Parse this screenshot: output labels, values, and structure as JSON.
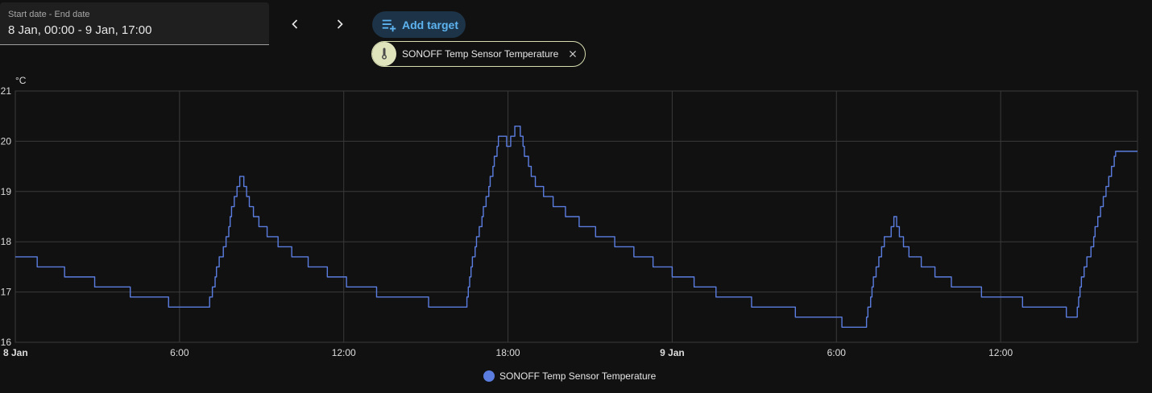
{
  "date_picker": {
    "label": "Start date - End date",
    "value": "8 Jan, 00:00 - 9 Jan, 17:00"
  },
  "nav": {
    "prev_icon": "chevron-left-icon",
    "next_icon": "chevron-right-icon"
  },
  "add_target": {
    "label": "Add target",
    "icon": "playlist-plus-icon"
  },
  "target_chip": {
    "label": "SONOFF Temp Sensor Temperature",
    "icon": "thermometer-icon",
    "close_icon": "close-icon"
  },
  "colors": {
    "series": "#5b7de0",
    "grid": "#3a3a3a",
    "axis_text": "#dcdcdc",
    "accent": "#5db4f0",
    "chip_bg": "#dfe4bd"
  },
  "chart_data": {
    "type": "line",
    "unit": "°C",
    "ylim": [
      16,
      21
    ],
    "yticks": [
      "16",
      "17",
      "18",
      "19",
      "20",
      "21"
    ],
    "xlim": [
      0,
      41
    ],
    "xticks": [
      {
        "x": 0,
        "label": "8 Jan",
        "bold": true
      },
      {
        "x": 6,
        "label": "6:00",
        "bold": false
      },
      {
        "x": 12,
        "label": "12:00",
        "bold": false
      },
      {
        "x": 18,
        "label": "18:00",
        "bold": false
      },
      {
        "x": 24,
        "label": "9 Jan",
        "bold": true
      },
      {
        "x": 30,
        "label": "6:00",
        "bold": false
      },
      {
        "x": 36,
        "label": "12:00",
        "bold": false
      }
    ],
    "grid": true,
    "legend_position": "bottom-center",
    "series": [
      {
        "name": "SONOFF Temp Sensor Temperature",
        "step": true,
        "points": [
          [
            0.0,
            17.7
          ],
          [
            0.8,
            17.5
          ],
          [
            1.8,
            17.3
          ],
          [
            2.9,
            17.1
          ],
          [
            4.2,
            16.9
          ],
          [
            5.6,
            16.7
          ],
          [
            7.1,
            16.9
          ],
          [
            7.2,
            17.1
          ],
          [
            7.3,
            17.3
          ],
          [
            7.35,
            17.5
          ],
          [
            7.45,
            17.7
          ],
          [
            7.6,
            17.9
          ],
          [
            7.7,
            18.1
          ],
          [
            7.8,
            18.3
          ],
          [
            7.85,
            18.5
          ],
          [
            7.9,
            18.7
          ],
          [
            8.0,
            18.9
          ],
          [
            8.1,
            19.1
          ],
          [
            8.2,
            19.3
          ],
          [
            8.35,
            19.1
          ],
          [
            8.45,
            18.9
          ],
          [
            8.55,
            18.7
          ],
          [
            8.7,
            18.5
          ],
          [
            8.9,
            18.3
          ],
          [
            9.2,
            18.1
          ],
          [
            9.6,
            17.9
          ],
          [
            10.1,
            17.7
          ],
          [
            10.7,
            17.5
          ],
          [
            11.4,
            17.3
          ],
          [
            12.1,
            17.1
          ],
          [
            13.2,
            16.9
          ],
          [
            15.1,
            16.7
          ],
          [
            16.5,
            16.9
          ],
          [
            16.55,
            17.1
          ],
          [
            16.6,
            17.3
          ],
          [
            16.65,
            17.5
          ],
          [
            16.7,
            17.7
          ],
          [
            16.8,
            17.9
          ],
          [
            16.85,
            18.1
          ],
          [
            16.95,
            18.3
          ],
          [
            17.05,
            18.5
          ],
          [
            17.1,
            18.7
          ],
          [
            17.2,
            18.9
          ],
          [
            17.3,
            19.1
          ],
          [
            17.35,
            19.3
          ],
          [
            17.45,
            19.5
          ],
          [
            17.5,
            19.7
          ],
          [
            17.6,
            19.9
          ],
          [
            17.65,
            20.1
          ],
          [
            17.95,
            19.9
          ],
          [
            18.1,
            20.1
          ],
          [
            18.25,
            20.3
          ],
          [
            18.45,
            20.1
          ],
          [
            18.55,
            19.9
          ],
          [
            18.6,
            19.7
          ],
          [
            18.75,
            19.5
          ],
          [
            18.85,
            19.3
          ],
          [
            19.0,
            19.1
          ],
          [
            19.3,
            18.9
          ],
          [
            19.65,
            18.7
          ],
          [
            20.1,
            18.5
          ],
          [
            20.6,
            18.3
          ],
          [
            21.2,
            18.1
          ],
          [
            21.9,
            17.9
          ],
          [
            22.6,
            17.7
          ],
          [
            23.3,
            17.5
          ],
          [
            24.0,
            17.3
          ],
          [
            24.8,
            17.1
          ],
          [
            25.6,
            16.9
          ],
          [
            26.9,
            16.7
          ],
          [
            28.5,
            16.5
          ],
          [
            30.2,
            16.3
          ],
          [
            31.1,
            16.5
          ],
          [
            31.15,
            16.7
          ],
          [
            31.25,
            16.9
          ],
          [
            31.3,
            17.1
          ],
          [
            31.35,
            17.3
          ],
          [
            31.45,
            17.5
          ],
          [
            31.55,
            17.7
          ],
          [
            31.65,
            17.9
          ],
          [
            31.75,
            18.1
          ],
          [
            32.0,
            18.3
          ],
          [
            32.1,
            18.5
          ],
          [
            32.2,
            18.3
          ],
          [
            32.3,
            18.1
          ],
          [
            32.45,
            17.9
          ],
          [
            32.65,
            17.7
          ],
          [
            33.1,
            17.5
          ],
          [
            33.6,
            17.3
          ],
          [
            34.2,
            17.1
          ],
          [
            35.3,
            16.9
          ],
          [
            36.8,
            16.7
          ],
          [
            38.4,
            16.5
          ],
          [
            38.8,
            16.7
          ],
          [
            38.85,
            16.9
          ],
          [
            38.9,
            17.1
          ],
          [
            38.95,
            17.3
          ],
          [
            39.05,
            17.5
          ],
          [
            39.15,
            17.7
          ],
          [
            39.3,
            17.9
          ],
          [
            39.4,
            18.1
          ],
          [
            39.45,
            18.3
          ],
          [
            39.55,
            18.5
          ],
          [
            39.65,
            18.7
          ],
          [
            39.75,
            18.9
          ],
          [
            39.85,
            19.1
          ],
          [
            39.95,
            19.3
          ],
          [
            40.05,
            19.5
          ],
          [
            40.15,
            19.7
          ],
          [
            40.2,
            19.8
          ]
        ]
      }
    ]
  }
}
